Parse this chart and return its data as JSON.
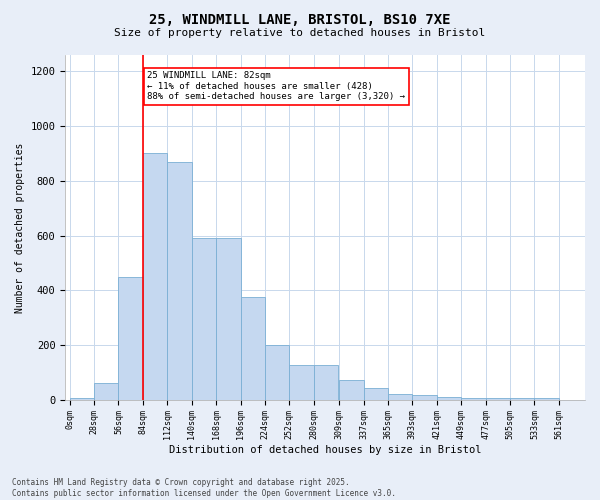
{
  "title_line1": "25, WINDMILL LANE, BRISTOL, BS10 7XE",
  "title_line2": "Size of property relative to detached houses in Bristol",
  "xlabel": "Distribution of detached houses by size in Bristol",
  "ylabel": "Number of detached properties",
  "bar_color": "#c5d8f0",
  "bar_edge_color": "#7aafd4",
  "vline_color": "red",
  "vline_x": 84,
  "bin_starts": [
    0,
    28,
    56,
    84,
    112,
    140,
    168,
    196,
    224,
    252,
    280,
    309,
    337,
    365,
    393,
    421,
    449,
    477,
    505,
    533,
    561
  ],
  "bin_width": 28,
  "bar_heights": [
    5,
    60,
    450,
    900,
    870,
    590,
    590,
    375,
    200,
    128,
    128,
    72,
    42,
    22,
    18,
    10,
    6,
    6,
    6,
    6,
    0
  ],
  "ylim": [
    0,
    1260
  ],
  "yticks": [
    0,
    200,
    400,
    600,
    800,
    1000,
    1200
  ],
  "annotation_text": "25 WINDMILL LANE: 82sqm\n← 11% of detached houses are smaller (428)\n88% of semi-detached houses are larger (3,320) →",
  "annotation_box_color": "white",
  "annotation_box_edge": "red",
  "footer_text": "Contains HM Land Registry data © Crown copyright and database right 2025.\nContains public sector information licensed under the Open Government Licence v3.0.",
  "background_color": "#e8eef8",
  "plot_bg_color": "#ffffff",
  "grid_color": "#c8d8ec"
}
